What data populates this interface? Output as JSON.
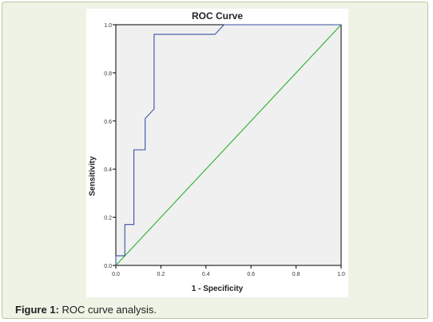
{
  "caption": {
    "prefix": "Figure 1:",
    "text": " ROC curve analysis."
  },
  "chart_data": {
    "type": "line",
    "title": "ROC Curve",
    "xlabel": "1 - Specificity",
    "ylabel": "Sensitivity",
    "xlim": [
      0,
      1
    ],
    "ylim": [
      0,
      1
    ],
    "x_ticks": [
      "0.0",
      "0.2",
      "0.4",
      "0.6",
      "0.8",
      "1.0"
    ],
    "y_ticks": [
      "0.0",
      "0.2",
      "0.4",
      "0.6",
      "0.8",
      "1.0"
    ],
    "grid": false,
    "series": [
      {
        "color": "#3b4fa6",
        "x": [
          0,
          0,
          0.04,
          0.04,
          0.08,
          0.08,
          0.13,
          0.13,
          0.17,
          0.17,
          0.44,
          0.48,
          1.0
        ],
        "y": [
          0,
          0.04,
          0.04,
          0.17,
          0.17,
          0.48,
          0.48,
          0.61,
          0.65,
          0.96,
          0.96,
          1.0,
          1.0
        ]
      },
      {
        "color": "#2bb02b",
        "x": [
          0,
          1
        ],
        "y": [
          0,
          1
        ]
      }
    ]
  }
}
